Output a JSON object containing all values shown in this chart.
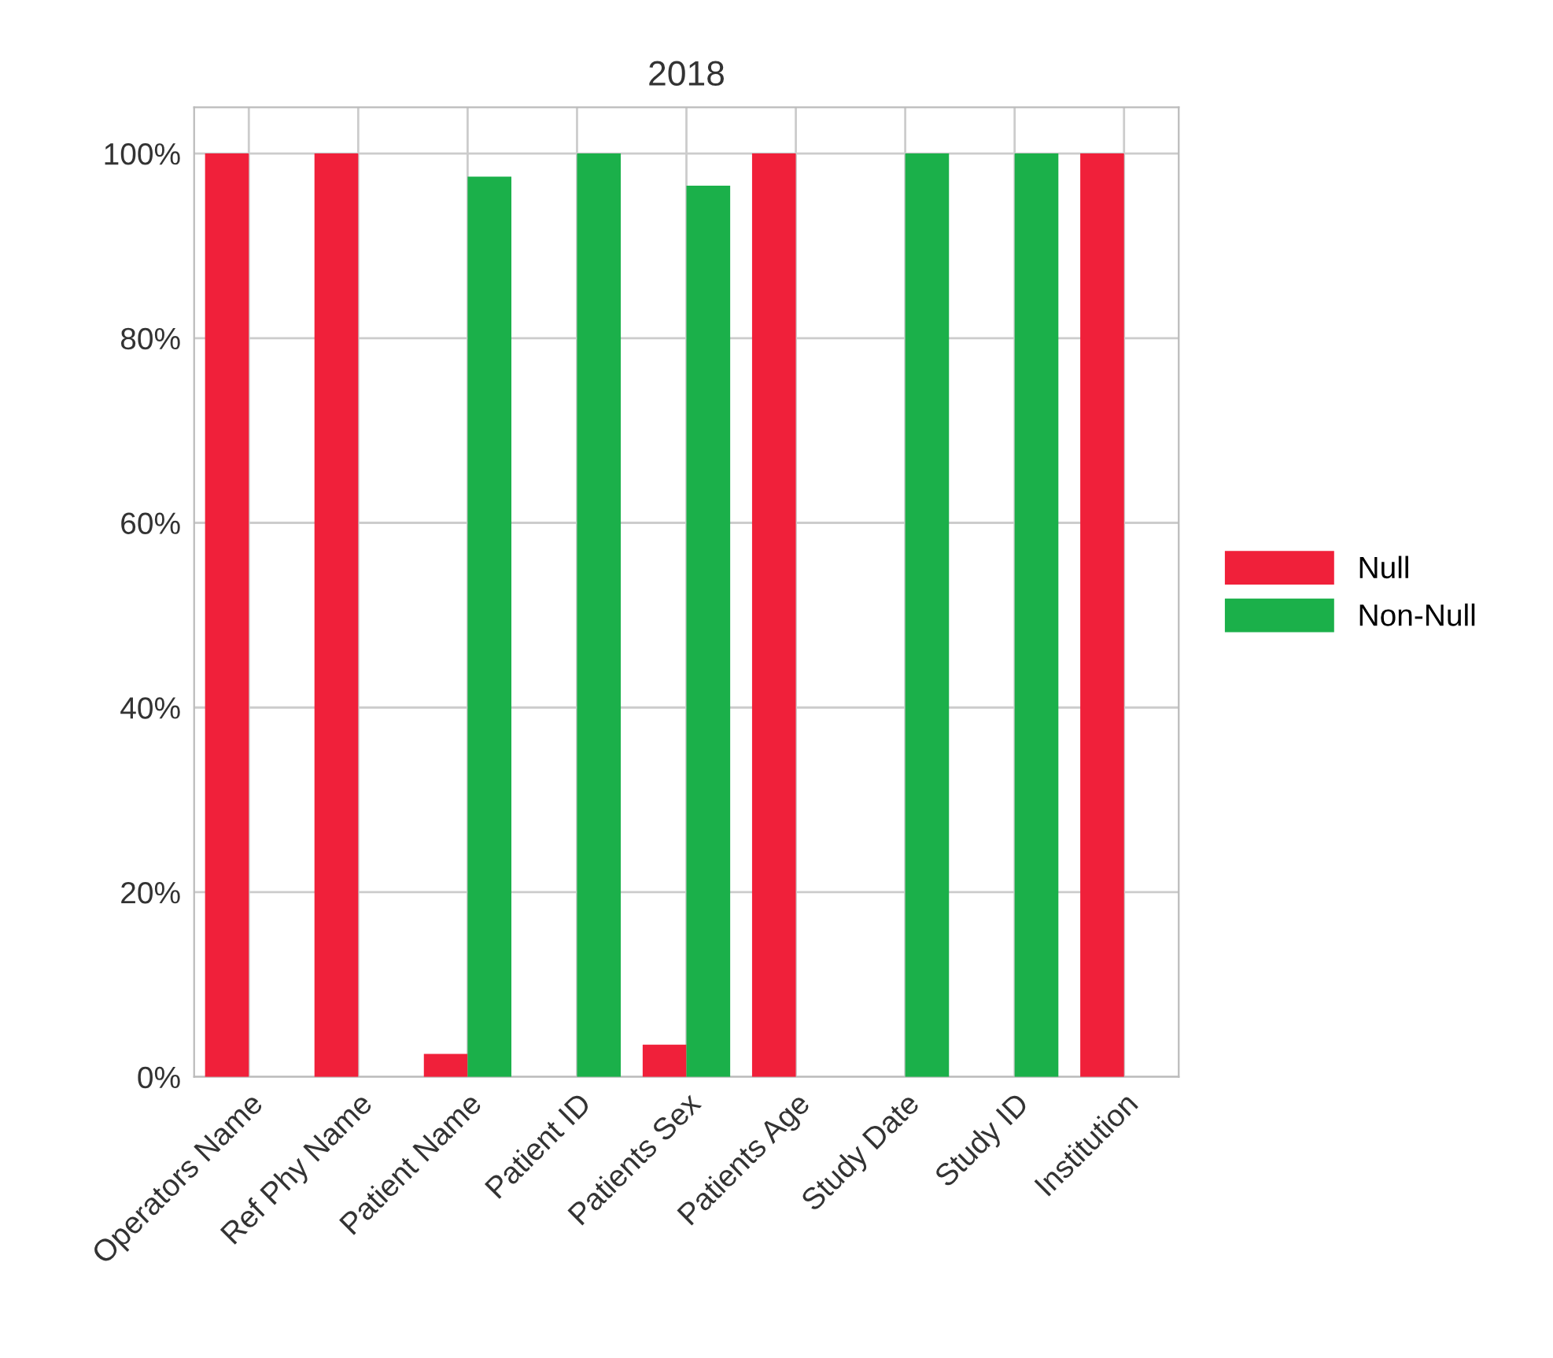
{
  "chart_data": {
    "type": "bar",
    "title": "2018",
    "categories": [
      "Operators Name",
      "Ref Phy Name",
      "Patient Name",
      "Patient ID",
      "Patients Sex",
      "Patients Age",
      "Study Date",
      "Study ID",
      "Institution"
    ],
    "series": [
      {
        "name": "Null",
        "color": "#f0203a",
        "values": [
          100,
          100,
          2.5,
          0,
          3.5,
          100,
          0,
          0,
          100
        ]
      },
      {
        "name": "Non-Null",
        "color": "#1bb04a",
        "values": [
          0,
          0,
          97.5,
          100,
          96.5,
          0,
          100,
          100,
          0
        ]
      }
    ],
    "ylim": [
      0,
      105
    ],
    "yticks": [
      {
        "value": 0,
        "label": "0%"
      },
      {
        "value": 20,
        "label": "20%"
      },
      {
        "value": 40,
        "label": "40%"
      },
      {
        "value": 60,
        "label": "60%"
      },
      {
        "value": 80,
        "label": "80%"
      },
      {
        "value": 100,
        "label": "100%"
      }
    ],
    "grid": true,
    "legend": "right"
  }
}
